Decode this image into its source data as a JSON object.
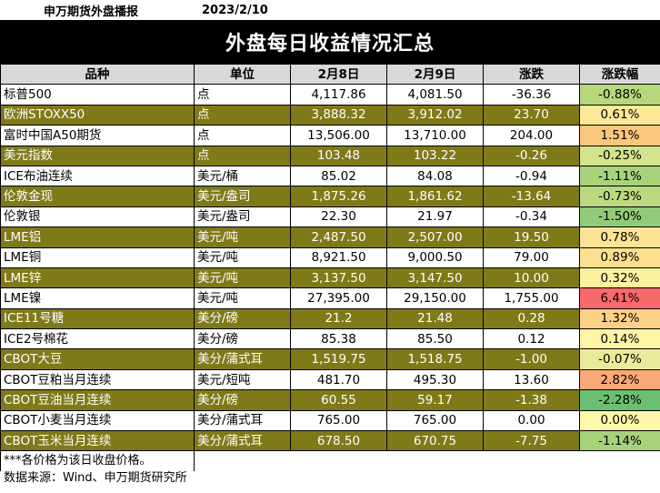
{
  "header": {
    "org": "申万期货外盘播报",
    "date": "2023/2/10"
  },
  "title": "外盘每日收益情况汇总",
  "columns": [
    "品种",
    "单位",
    "2月8日",
    "2月9日",
    "涨跌",
    "涨跌幅"
  ],
  "rows": [
    {
      "name": "标普500",
      "unit": "点",
      "d1": "4,117.86",
      "d2": "4,081.50",
      "chg": "-36.36",
      "pct": "-0.88%",
      "pct_color": "#b6d77a",
      "alt": false
    },
    {
      "name": "欧洲STOXX50",
      "unit": "点",
      "d1": "3,888.32",
      "d2": "3,912.02",
      "chg": "23.70",
      "pct": "0.61%",
      "pct_color": "#fde998",
      "alt": true
    },
    {
      "name": "富时中国A50期货",
      "unit": "点",
      "d1": "13,506.00",
      "d2": "13,710.00",
      "chg": "204.00",
      "pct": "1.51%",
      "pct_color": "#fbc77c",
      "alt": false
    },
    {
      "name": "美元指数",
      "unit": "点",
      "d1": "103.48",
      "d2": "103.22",
      "chg": "-0.26",
      "pct": "-0.25%",
      "pct_color": "#d2e48c",
      "alt": true
    },
    {
      "name": "ICE布油连续",
      "unit": "美元/桶",
      "d1": "85.02",
      "d2": "84.08",
      "chg": "-0.94",
      "pct": "-1.11%",
      "pct_color": "#a9d37a",
      "alt": false
    },
    {
      "name": "伦敦金现",
      "unit": "美元/盎司",
      "d1": "1,875.26",
      "d2": "1,861.62",
      "chg": "-13.64",
      "pct": "-0.73%",
      "pct_color": "#bcd980",
      "alt": true
    },
    {
      "name": "伦敦银",
      "unit": "美元/盎司",
      "d1": "22.30",
      "d2": "21.97",
      "chg": "-0.34",
      "pct": "-1.50%",
      "pct_color": "#92cb78",
      "alt": false
    },
    {
      "name": "LME铝",
      "unit": "美元/吨",
      "d1": "2,487.50",
      "d2": "2,507.00",
      "chg": "19.50",
      "pct": "0.78%",
      "pct_color": "#fde393",
      "alt": true
    },
    {
      "name": "LME铜",
      "unit": "美元/吨",
      "d1": "8,921.50",
      "d2": "9,000.50",
      "chg": "79.00",
      "pct": "0.89%",
      "pct_color": "#fde08f",
      "alt": false
    },
    {
      "name": "LME锌",
      "unit": "美元/吨",
      "d1": "3,137.50",
      "d2": "3,147.50",
      "chg": "10.00",
      "pct": "0.32%",
      "pct_color": "#fdf09f",
      "alt": true
    },
    {
      "name": "LME镍",
      "unit": "美元/吨",
      "d1": "27,395.00",
      "d2": "29,150.00",
      "chg": "1,755.00",
      "pct": "6.41%",
      "pct_color": "#f8696b",
      "alt": false
    },
    {
      "name": "ICE11号糖",
      "unit": "美分/磅",
      "d1": "21.2",
      "d2": "21.48",
      "chg": "0.28",
      "pct": "1.32%",
      "pct_color": "#fcd085",
      "alt": true
    },
    {
      "name": "ICE2号棉花",
      "unit": "美分/磅",
      "d1": "85.38",
      "d2": "85.50",
      "chg": "0.12",
      "pct": "0.14%",
      "pct_color": "#fef4a6",
      "alt": false
    },
    {
      "name": "CBOT大豆",
      "unit": "美分/蒲式耳",
      "d1": "1,519.75",
      "d2": "1,518.75",
      "chg": "-1.00",
      "pct": "-0.07%",
      "pct_color": "#e8ec9a",
      "alt": true
    },
    {
      "name": "CBOT豆粕当月连续",
      "unit": "美元/短吨",
      "d1": "481.70",
      "d2": "495.30",
      "chg": "13.60",
      "pct": "2.82%",
      "pct_color": "#faa877",
      "alt": false
    },
    {
      "name": "CBOT豆油当月连续",
      "unit": "美分/磅",
      "d1": "60.55",
      "d2": "59.17",
      "chg": "-1.38",
      "pct": "-2.28%",
      "pct_color": "#6abf70",
      "alt": true
    },
    {
      "name": "CBOT小麦当月连续",
      "unit": "美分/蒲式耳",
      "d1": "765.00",
      "d2": "765.00",
      "chg": "0.00",
      "pct": "0.00%",
      "pct_color": "#fef8aa",
      "alt": false
    },
    {
      "name": "CBOT玉米当月连续",
      "unit": "美分/蒲式耳",
      "d1": "678.50",
      "d2": "670.75",
      "chg": "-7.75",
      "pct": "-1.14%",
      "pct_color": "#a7d27b",
      "alt": true
    }
  ],
  "note": "***各价格为该日收盘价格。",
  "source": "数据来源：Wind、申万期货研究所"
}
